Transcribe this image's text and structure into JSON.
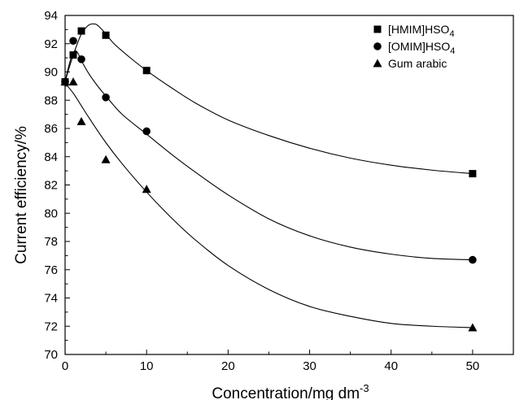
{
  "chart_data": {
    "type": "scatter",
    "title": "",
    "xlabel": "Concentration/mg dm",
    "xlabel_superscript": "-3",
    "ylabel": "Current efficiency/%",
    "xlim": [
      0,
      55
    ],
    "ylim": [
      70,
      94
    ],
    "x_ticks": [
      0,
      10,
      20,
      30,
      40,
      50
    ],
    "y_ticks": [
      70,
      72,
      74,
      76,
      78,
      80,
      82,
      84,
      86,
      88,
      90,
      92,
      94
    ],
    "grid": false,
    "legend_position": "top-right",
    "series": [
      {
        "name": "[HMIM]HSO",
        "name_subscript": "4",
        "marker": "square",
        "x": [
          0,
          1,
          2,
          5,
          10,
          50
        ],
        "y": [
          89.3,
          91.2,
          92.9,
          92.6,
          90.1,
          82.8
        ],
        "curve": [
          [
            0,
            89.3
          ],
          [
            0.5,
            90.3
          ],
          [
            1,
            91.2
          ],
          [
            1.5,
            92.0
          ],
          [
            2,
            92.7
          ],
          [
            2.5,
            93.1
          ],
          [
            3,
            93.35
          ],
          [
            3.5,
            93.4
          ],
          [
            4,
            93.3
          ],
          [
            5,
            92.7
          ],
          [
            6,
            92.0
          ],
          [
            8,
            91.0
          ],
          [
            10,
            90.1
          ],
          [
            13,
            88.9
          ],
          [
            16,
            87.8
          ],
          [
            20,
            86.6
          ],
          [
            25,
            85.5
          ],
          [
            30,
            84.6
          ],
          [
            35,
            83.9
          ],
          [
            40,
            83.4
          ],
          [
            45,
            83.05
          ],
          [
            50,
            82.8
          ]
        ]
      },
      {
        "name": "[OMIM]HSO",
        "name_subscript": "4",
        "marker": "circle",
        "x": [
          0,
          1,
          2,
          5,
          10,
          50
        ],
        "y": [
          89.3,
          92.2,
          90.9,
          88.2,
          85.8,
          76.7
        ],
        "curve": [
          [
            0,
            89.3
          ],
          [
            0.4,
            90.3
          ],
          [
            0.8,
            91.1
          ],
          [
            1.2,
            91.5
          ],
          [
            1.6,
            91.3
          ],
          [
            2,
            90.8
          ],
          [
            3,
            89.8
          ],
          [
            4,
            89.0
          ],
          [
            5,
            88.3
          ],
          [
            7,
            87.0
          ],
          [
            10,
            85.6
          ],
          [
            13,
            84.2
          ],
          [
            16,
            82.9
          ],
          [
            20,
            81.3
          ],
          [
            25,
            79.6
          ],
          [
            30,
            78.4
          ],
          [
            35,
            77.6
          ],
          [
            40,
            77.1
          ],
          [
            45,
            76.8
          ],
          [
            50,
            76.7
          ]
        ]
      },
      {
        "name": "Gum arabic",
        "marker": "triangle",
        "x": [
          0,
          1,
          2,
          5,
          10,
          50
        ],
        "y": [
          89.3,
          89.3,
          86.5,
          83.8,
          81.7,
          71.9
        ],
        "curve": [
          [
            0,
            89.2
          ],
          [
            1,
            88.5
          ],
          [
            2,
            87.6
          ],
          [
            3,
            86.7
          ],
          [
            5,
            85.0
          ],
          [
            7,
            83.5
          ],
          [
            10,
            81.5
          ],
          [
            13,
            79.7
          ],
          [
            16,
            78.1
          ],
          [
            20,
            76.3
          ],
          [
            25,
            74.6
          ],
          [
            30,
            73.4
          ],
          [
            35,
            72.7
          ],
          [
            40,
            72.2
          ],
          [
            45,
            72.0
          ],
          [
            50,
            71.9
          ]
        ]
      }
    ]
  }
}
